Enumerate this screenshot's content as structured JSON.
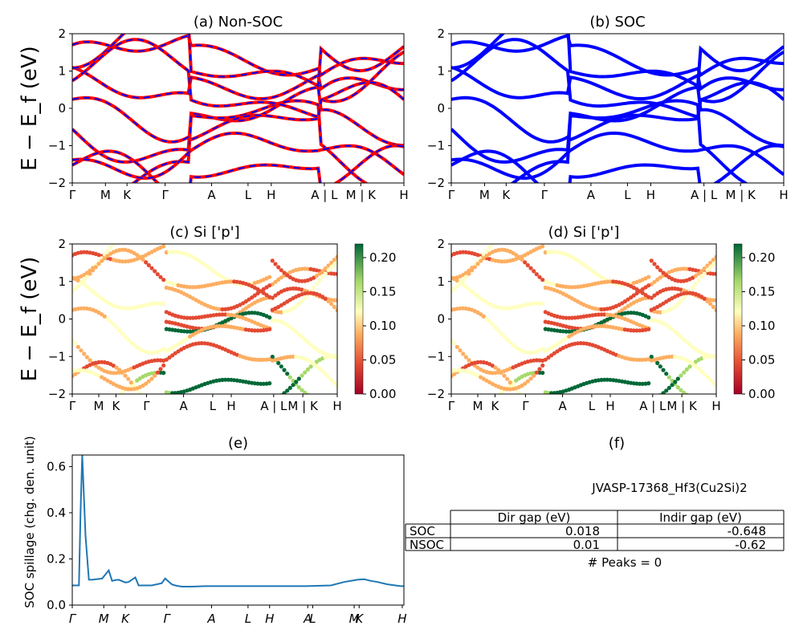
{
  "colors": {
    "nonsoc_band": "#ff0000",
    "nonsoc_dash": "#0000ff",
    "soc_band": "#0000ff",
    "spillage_line": "#1f77b4"
  },
  "chart_data": [
    {
      "id": "a",
      "type": "line",
      "title": "(a) Non-SOC",
      "ylabel": "E − E_f (eV)",
      "ylim": [
        -2,
        2
      ],
      "yticks": [
        "2",
        "1",
        "0",
        "−1",
        "−2"
      ],
      "kpath_labels": [
        "Γ",
        "M",
        "K",
        "Γ",
        "A",
        "L",
        "H",
        "A | L",
        "M | K",
        "H"
      ]
    },
    {
      "id": "b",
      "type": "line",
      "title": "(b) SOC",
      "ylim": [
        -2,
        2
      ],
      "yticks": [
        "2",
        "1",
        "0",
        "−1",
        "−2"
      ],
      "kpath_labels": [
        "Γ",
        "M",
        "K",
        "Γ",
        "A",
        "L",
        "H",
        "A | L",
        "M | K",
        "H"
      ]
    },
    {
      "id": "c",
      "type": "scatter",
      "title": "(c)  Si ['p']",
      "ylabel": "E − E_f (eV)",
      "ylim": [
        -2,
        2
      ],
      "yticks": [
        "2",
        "1",
        "0",
        "−1",
        "−2"
      ],
      "kpath_labels": [
        "Γ",
        "M",
        "K",
        "Γ",
        "A",
        "L",
        "H",
        "A | L",
        "M | K",
        "H"
      ],
      "colorbar": {
        "range": [
          0,
          0.22
        ],
        "ticks": [
          "0.20",
          "0.15",
          "0.10",
          "0.05",
          "0.00"
        ],
        "cmap": "RdYlGn"
      }
    },
    {
      "id": "d",
      "type": "scatter",
      "title": "(d) Si ['p']",
      "ylim": [
        -2,
        2
      ],
      "yticks": [
        "2",
        "1",
        "0",
        "−1",
        "−2"
      ],
      "kpath_labels": [
        "Γ",
        "M",
        "K",
        "Γ",
        "A",
        "L",
        "H",
        "A | L",
        "M | K",
        "H"
      ],
      "colorbar": {
        "range": [
          0,
          0.22
        ],
        "ticks": [
          "0.20",
          "0.15",
          "0.10",
          "0.05",
          "0.00"
        ],
        "cmap": "RdYlGn"
      }
    },
    {
      "id": "e",
      "type": "line",
      "title": "(e)",
      "ylabel": "SOC spillage (chg. den. unit)",
      "ylim": [
        0,
        0.65
      ],
      "yticks": [
        "0.6",
        "0.4",
        "0.2",
        "0.0"
      ],
      "kpath_labels": [
        "Γ",
        "M",
        "K",
        "Γ",
        "A",
        "L",
        "H",
        "A",
        "L",
        "M",
        "K",
        "H"
      ],
      "x": [
        0,
        0.02,
        0.025,
        0.03,
        0.04,
        0.05,
        0.06,
        0.09,
        0.11,
        0.12,
        0.13,
        0.14,
        0.16,
        0.17,
        0.19,
        0.2,
        0.24,
        0.27,
        0.28,
        0.3,
        0.31,
        0.33,
        0.36,
        0.4,
        0.5,
        0.6,
        0.7,
        0.78,
        0.82,
        0.86,
        0.88,
        0.9,
        0.92,
        0.95,
        0.99,
        1.0
      ],
      "y": [
        0.085,
        0.085,
        0.4,
        0.65,
        0.3,
        0.11,
        0.11,
        0.115,
        0.15,
        0.105,
        0.108,
        0.11,
        0.098,
        0.1,
        0.12,
        0.085,
        0.085,
        0.095,
        0.115,
        0.09,
        0.085,
        0.08,
        0.08,
        0.082,
        0.082,
        0.082,
        0.082,
        0.085,
        0.1,
        0.11,
        0.112,
        0.105,
        0.1,
        0.09,
        0.082,
        0.082
      ]
    },
    {
      "id": "f",
      "type": "table",
      "title": "(f)",
      "material": "JVASP-17368_Hf3(Cu2Si)2",
      "columns": [
        "Dir gap (eV)",
        "Indir gap (eV)"
      ],
      "rows": [
        {
          "label": "SOC",
          "values": [
            "0.018",
            "-0.648"
          ]
        },
        {
          "label": "NSOC",
          "values": [
            "0.01",
            "-0.62"
          ]
        }
      ],
      "footer": "# Peaks = 0"
    }
  ]
}
